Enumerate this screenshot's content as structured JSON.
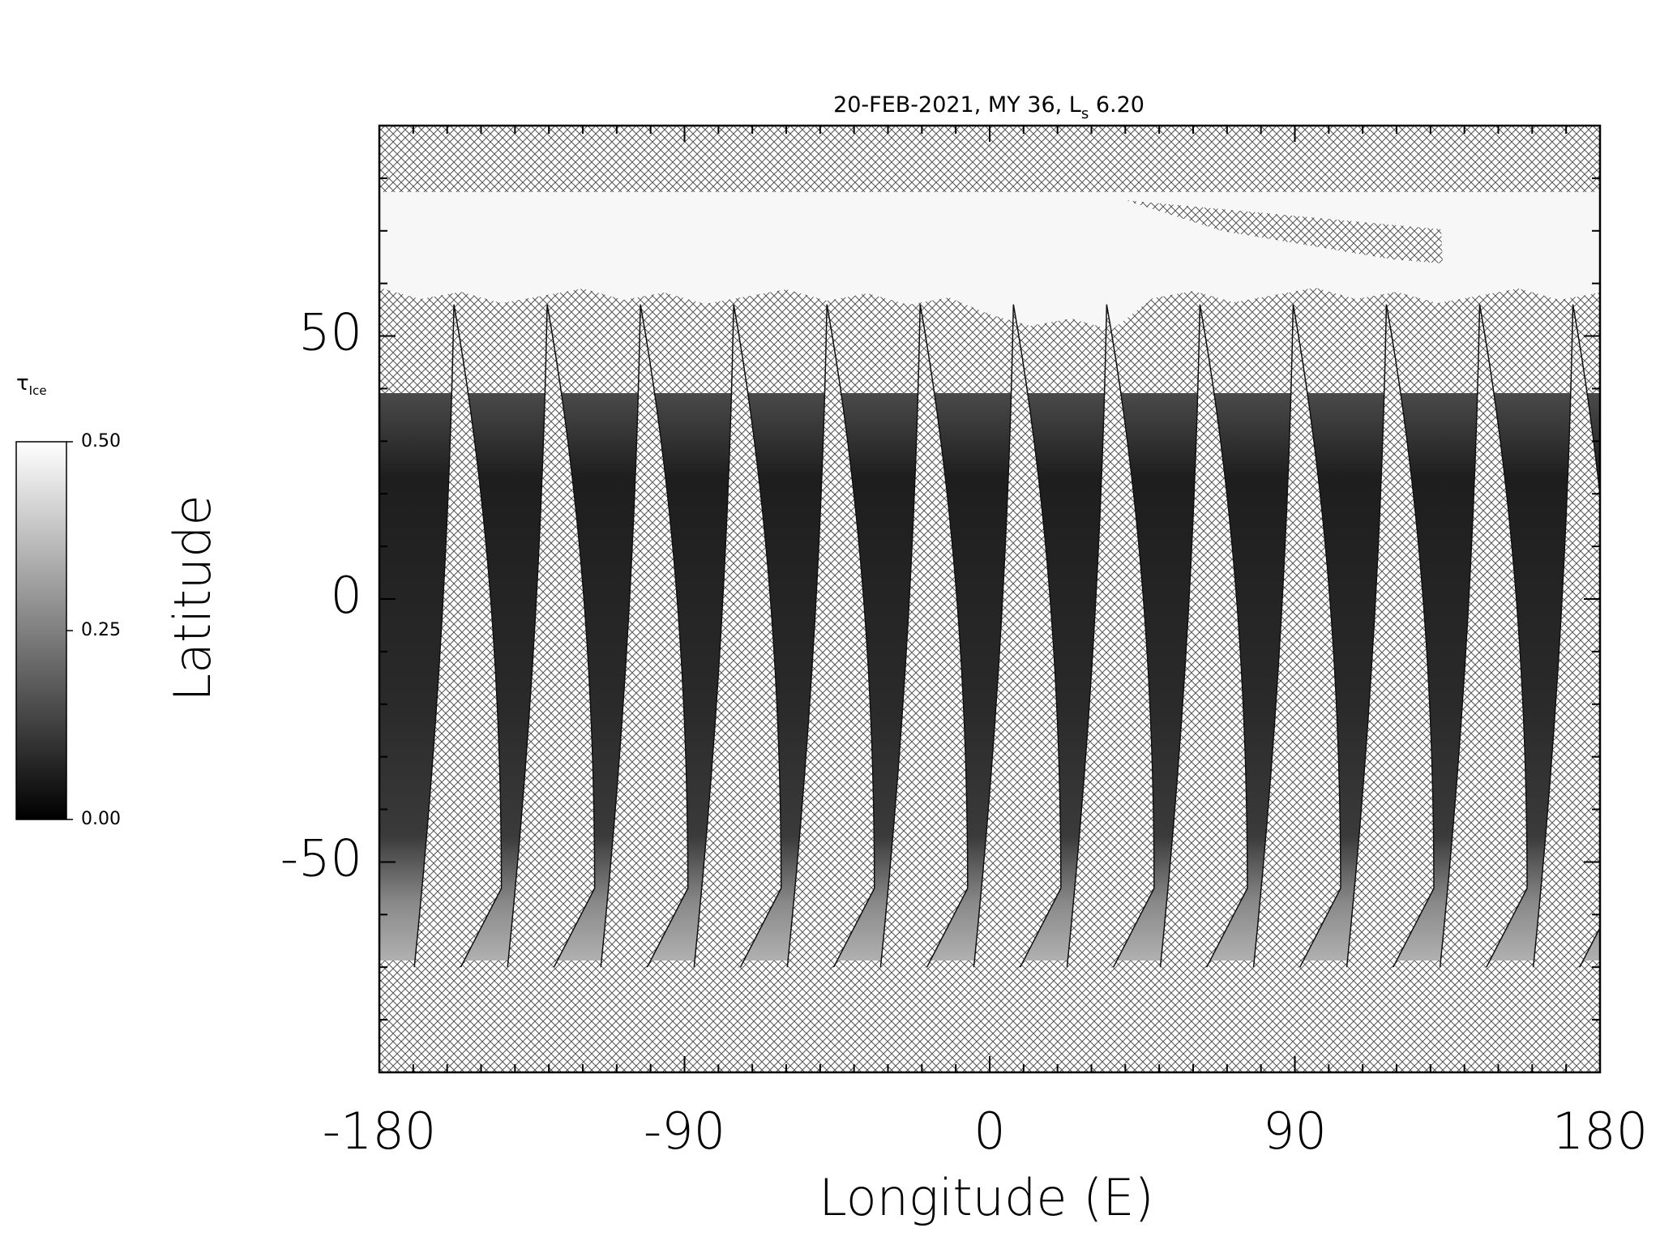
{
  "chart_data": {
    "type": "map",
    "title": {
      "text": "20-FEB-2021, MY 36,  L",
      "subscript": "s",
      "tail": " 6.20"
    },
    "xlabel": "Longitude (E)",
    "ylabel": "Latitude",
    "xlim": [
      -180,
      180
    ],
    "xticks": [
      -180,
      -90,
      0,
      90,
      180
    ],
    "xminorticks": [
      -170,
      -160,
      -150,
      -140,
      -130,
      -120,
      -110,
      -100,
      -80,
      -70,
      -60,
      -50,
      -40,
      -30,
      -20,
      -10,
      10,
      20,
      30,
      40,
      50,
      60,
      70,
      80,
      100,
      110,
      120,
      130,
      140,
      150,
      160,
      170
    ],
    "ylim": [
      -90,
      90
    ],
    "yticks": [
      -50,
      0,
      50
    ],
    "yminorticks": [
      -80,
      -70,
      -60,
      -40,
      -30,
      -20,
      -10,
      10,
      20,
      30,
      40,
      60,
      70,
      80
    ],
    "colorbar": {
      "label": "τ",
      "subscript": "Ice",
      "lim": [
        0,
        0.5
      ],
      "colors": [
        "#000000",
        "#ffffff"
      ],
      "ticks": [
        {
          "value": 0.5,
          "label": "0.50"
        },
        {
          "value": 0.25,
          "label": "0.25"
        },
        {
          "value": 0,
          "label": "0.00"
        }
      ]
    }
  }
}
